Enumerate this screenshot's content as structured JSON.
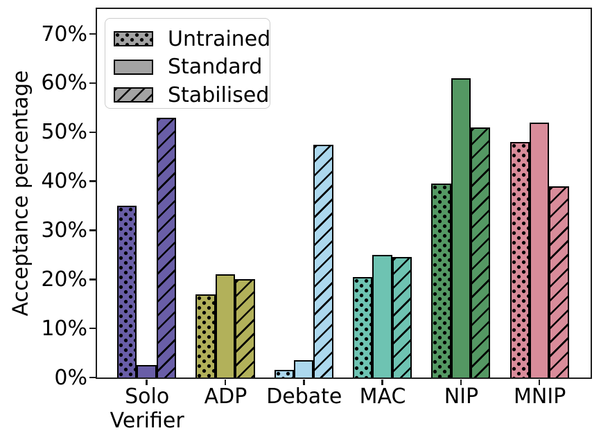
{
  "chart_data": {
    "type": "bar",
    "title": "",
    "ylabel": "Acceptance percentage",
    "xlabel": "",
    "categories": [
      "Solo\nVerifier",
      "ADP",
      "Debate",
      "MAC",
      "NIP",
      "MNIP"
    ],
    "series": [
      {
        "name": "Untrained",
        "pattern": "dots",
        "values": [
          35,
          17,
          1.5,
          20.5,
          39.5,
          48
        ]
      },
      {
        "name": "Standard",
        "pattern": "solid",
        "values": [
          2.5,
          21,
          3.5,
          25,
          61,
          52
        ]
      },
      {
        "name": "Stabilised",
        "pattern": "diagonal",
        "values": [
          53,
          20,
          47.5,
          24.5,
          51,
          39
        ]
      }
    ],
    "category_colors": [
      "#695ea7",
      "#b2b15a",
      "#acd8ee",
      "#6ec3b2",
      "#549863",
      "#d98c9a"
    ],
    "ytick_labels": [
      "0%",
      "10%",
      "20%",
      "30%",
      "40%",
      "50%",
      "60%",
      "70%"
    ],
    "ytick_values": [
      0,
      10,
      20,
      30,
      40,
      50,
      60,
      70
    ],
    "ylim": [
      0,
      75.1
    ],
    "grid": false,
    "legend": {
      "position": "upper-left",
      "patch_color": "#a3a3a3",
      "entries": [
        "Untrained",
        "Standard",
        "Stabilised"
      ]
    },
    "edge_color": "#000000"
  }
}
